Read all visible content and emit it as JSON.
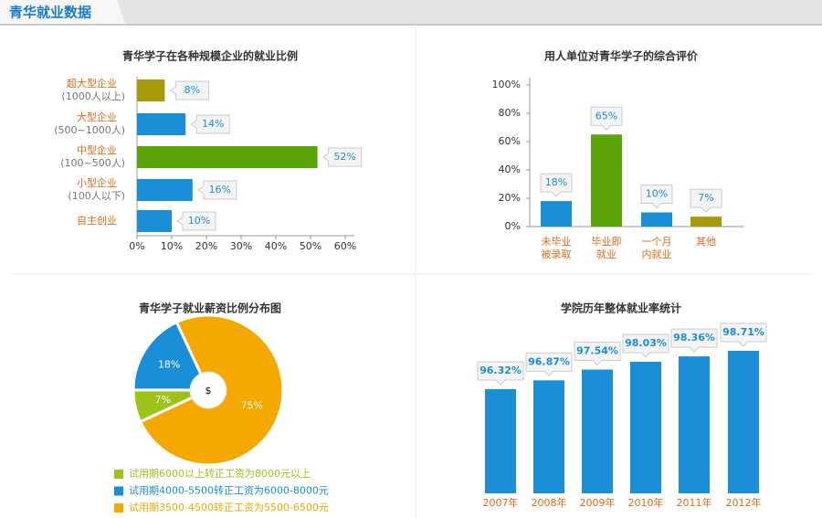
{
  "header": {
    "title": "青华就业数据"
  },
  "chart_data": [
    {
      "type": "hbar",
      "title": "青华学子在各种规模企业的就业比例",
      "categories": [
        "超大型企业",
        "大型企业",
        "中型企业",
        "小型企业",
        "自主创业"
      ],
      "category_notes": [
        "(1000人以上)",
        "(500~1000人)",
        "(100~500人)",
        "(100人以下)",
        null
      ],
      "values": [
        8,
        14,
        52,
        16,
        10
      ],
      "value_labels": [
        "8%",
        "14%",
        "52%",
        "16%",
        "10%"
      ],
      "colors": [
        "#a89a0a",
        "#1a8fd8",
        "#5aa40a",
        "#1a8fd8",
        "#1a8fd8"
      ],
      "xlim": [
        0,
        60
      ],
      "xticks": [
        {
          "value": 0,
          "label": "0%"
        },
        {
          "value": 10,
          "label": "10%"
        },
        {
          "value": 20,
          "label": "20%"
        },
        {
          "value": 30,
          "label": "30%"
        },
        {
          "value": 40,
          "label": "40%"
        },
        {
          "value": 50,
          "label": "50%"
        },
        {
          "value": 60,
          "label": "60%"
        }
      ]
    },
    {
      "type": "bar",
      "title": "用人单位对青华学子的综合评价",
      "categories": [
        [
          "未毕业",
          "被录取"
        ],
        [
          "毕业即",
          "就业"
        ],
        [
          "一个月",
          "内就业"
        ],
        [
          "其他"
        ]
      ],
      "values": [
        18,
        65,
        10,
        7
      ],
      "value_labels": [
        "18%",
        "65%",
        "10%",
        "7%"
      ],
      "colors": [
        "#1a8fd8",
        "#5aa40a",
        "#1a8fd8",
        "#a89a0a"
      ],
      "ylim": [
        0,
        100
      ],
      "yticks": [
        {
          "value": 0,
          "label": "0%"
        },
        {
          "value": 20,
          "label": "20%"
        },
        {
          "value": 40,
          "label": "40%"
        },
        {
          "value": 60,
          "label": "60%"
        },
        {
          "value": 80,
          "label": "80%"
        },
        {
          "value": 100,
          "label": "100%"
        }
      ]
    },
    {
      "type": "pie",
      "title": "青华学子就业薪资比例分布图",
      "center_label": "$",
      "categories": [
        "试用期3500-4500转正工资为5500-6500元",
        "试用期6000以上转正工资为8000元以上",
        "试用期4000-5500转正工资为6000-8000元"
      ],
      "values": [
        75,
        7,
        18
      ],
      "value_labels": [
        "75%",
        "7%",
        "18%"
      ],
      "colors": [
        "#f5a800",
        "#9dc21a",
        "#1a8fd8"
      ],
      "legend_order": [
        1,
        2,
        0
      ]
    },
    {
      "type": "bar",
      "title": "学院历年整体就业率统计",
      "categories": [
        "2007年",
        "2008年",
        "2009年",
        "2010年",
        "2011年",
        "2012年"
      ],
      "values": [
        96.32,
        96.87,
        97.54,
        98.03,
        98.36,
        98.71
      ],
      "value_labels": [
        "96.32%",
        "96.87%",
        "97.54%",
        "98.03%",
        "98.36%",
        "98.71%"
      ],
      "color": "#1a8fd8"
    }
  ]
}
